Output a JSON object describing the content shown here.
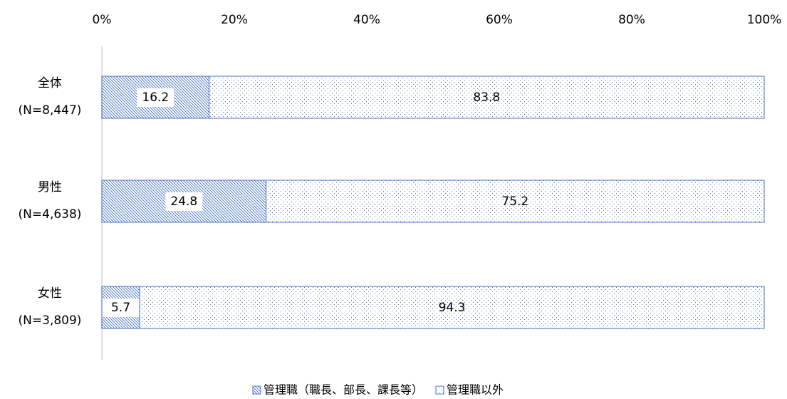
{
  "chart_data": {
    "type": "stacked-bar-horizontal",
    "categories": [
      [
        "全体",
        "(N=8,447)"
      ],
      [
        "男性",
        "(N=4,638)"
      ],
      [
        "女性",
        "(N=3,809)"
      ]
    ],
    "series": [
      {
        "name": "管理職（職長、部長、課長等）",
        "color": "#4472c4",
        "values": [
          16.2,
          24.8,
          5.7
        ]
      },
      {
        "name": "管理職以外",
        "color": "#4472c4",
        "values": [
          83.8,
          75.2,
          94.3
        ]
      }
    ],
    "xlim": [
      0,
      100
    ],
    "xticks": [
      {
        "value": 0,
        "label": "0%"
      },
      {
        "value": 20,
        "label": "20%"
      },
      {
        "value": 40,
        "label": "40%"
      },
      {
        "value": 60,
        "label": "60%"
      },
      {
        "value": 80,
        "label": "80%"
      },
      {
        "value": 100,
        "label": "100%"
      }
    ],
    "legend": "bottom"
  }
}
